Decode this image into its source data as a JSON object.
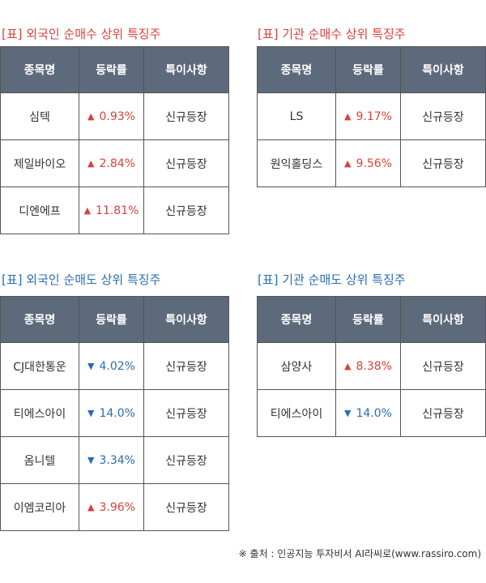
{
  "sections": [
    {
      "title": "[표] 외국인 순매수 상위 특징주",
      "color": "red",
      "headers": [
        "종목명",
        "등락률",
        "특이사항"
      ],
      "rows": [
        {
          "name": "심텍",
          "dir": "up",
          "rate": "0.93%",
          "note": "신규등장"
        },
        {
          "name": "제일바이오",
          "dir": "up",
          "rate": "2.84%",
          "note": "신규등장"
        },
        {
          "name": "디엔에프",
          "dir": "up",
          "rate": "11.81%",
          "note": "신규등장"
        }
      ]
    },
    {
      "title": "[표] 기관 순매수 상위 특징주",
      "color": "red",
      "headers": [
        "종목명",
        "등락률",
        "특이사항"
      ],
      "rows": [
        {
          "name": "LS",
          "dir": "up",
          "rate": "9.17%",
          "note": "신규등장"
        },
        {
          "name": "원익홀딩스",
          "dir": "up",
          "rate": "9.56%",
          "note": "신규등장"
        }
      ]
    },
    {
      "title": "[표] 외국인 순매도 상위 특징주",
      "color": "blue",
      "headers": [
        "종목명",
        "등락률",
        "특이사항"
      ],
      "rows": [
        {
          "name": "CJ대한통운",
          "dir": "down",
          "rate": "4.02%",
          "note": "신규등장"
        },
        {
          "name": "티에스아이",
          "dir": "down",
          "rate": "14.0%",
          "note": "신규등장"
        },
        {
          "name": "옴니텔",
          "dir": "down",
          "rate": "3.34%",
          "note": "신규등장"
        },
        {
          "name": "이엠코리아",
          "dir": "up",
          "rate": "3.96%",
          "note": "신규등장"
        }
      ]
    },
    {
      "title": "[표] 기관 순매도 상위 특징주",
      "color": "blue",
      "headers": [
        "종목명",
        "등락률",
        "특이사항"
      ],
      "rows": [
        {
          "name": "삼양사",
          "dir": "up",
          "rate": "8.38%",
          "note": "신규등장"
        },
        {
          "name": "티에스아이",
          "dir": "down",
          "rate": "14.0%",
          "note": "신규등장"
        }
      ]
    }
  ],
  "arrows": {
    "up": "▲",
    "down": "▼"
  },
  "colors": {
    "header_bg": "#5d6a7b",
    "up": "#d9413c",
    "down": "#2a6db5",
    "border": "#555555"
  },
  "footer": "※ 출처 : 인공지능 투자비서 AI라씨로(www.rassiro.com)"
}
